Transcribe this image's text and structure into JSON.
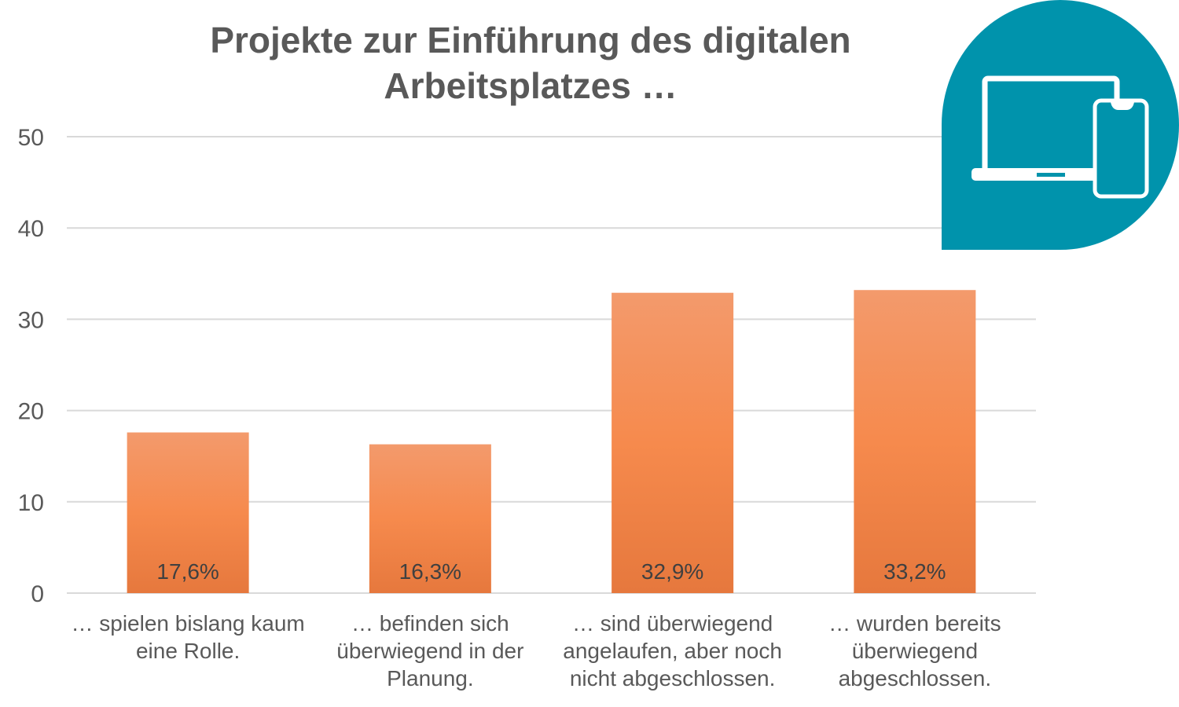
{
  "chart_data": {
    "type": "bar",
    "title": "Projekte zur Einführung des digitalen Arbeitsplatzes …",
    "categories": [
      "… spielen bislang kaum eine Rolle.",
      "… befinden sich überwiegend in der Planung.",
      "… sind überwiegend angelaufen, aber noch nicht abgeschlossen.",
      "… wurden bereits überwiegend abgeschlossen."
    ],
    "values": [
      17.6,
      16.3,
      32.9,
      33.2
    ],
    "data_labels": [
      "17,6%",
      "16,3%",
      "32,9%",
      "33,2%"
    ],
    "ylim": [
      0,
      50
    ],
    "yticks": [
      "0",
      "10",
      "20",
      "30",
      "40",
      "50"
    ],
    "xlabel": "",
    "ylabel": "",
    "grid": true,
    "bar_color": "#F58A4B"
  },
  "badge": {
    "icon": "laptop-and-smartphone-icon",
    "color": "#0093AC"
  }
}
